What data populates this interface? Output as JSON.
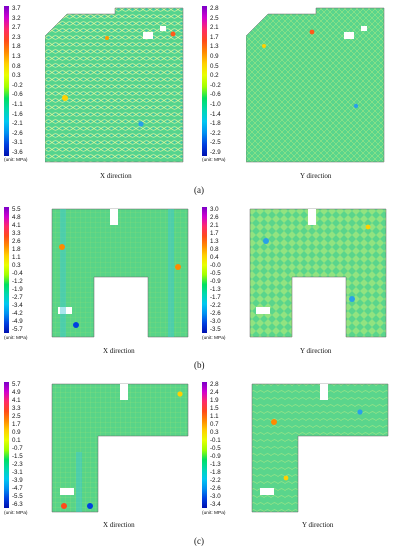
{
  "colors": {
    "scale": [
      "#7a00c8",
      "#d000d0",
      "#ff2a6a",
      "#ff4a1a",
      "#ff8a00",
      "#ffd000",
      "#e8ff00",
      "#a0ff00",
      "#00e060",
      "#00d8b0",
      "#00c8f0",
      "#0090f0",
      "#0040e0",
      "#0010b0"
    ],
    "field_base": "#4fd28a",
    "field_hot": "#ffd24a",
    "field_cold": "#2aa0e8"
  },
  "panels": [
    {
      "caption": "(a)",
      "plots": [
        {
          "direction_label": "X direction",
          "unit_label": "(unit: MPa)",
          "ticks": [
            "3.7",
            "3.2",
            "2.7",
            "2.3",
            "1.8",
            "1.3",
            "0.8",
            "0.3",
            "-0.2",
            "-0.6",
            "-1.1",
            "-1.6",
            "-2.1",
            "-2.6",
            "-3.1",
            "-3.6"
          ]
        },
        {
          "direction_label": "Y direction",
          "unit_label": "(unit: MPa)",
          "ticks": [
            "2.8",
            "2.5",
            "2.1",
            "1.7",
            "1.3",
            "0.9",
            "0.5",
            "0.2",
            "-0.2",
            "-0.6",
            "-1.0",
            "-1.4",
            "-1.8",
            "-2.2",
            "-2.5",
            "-2.9"
          ]
        }
      ]
    },
    {
      "caption": "(b)",
      "plots": [
        {
          "direction_label": "X direction",
          "unit_label": "(unit: MPa)",
          "ticks": [
            "5.5",
            "4.8",
            "4.1",
            "3.3",
            "2.6",
            "1.8",
            "1.1",
            "0.3",
            "-0.4",
            "-1.2",
            "-1.9",
            "-2.7",
            "-3.4",
            "-4.2",
            "-4.9",
            "-5.7"
          ]
        },
        {
          "direction_label": "Y direction",
          "unit_label": "(unit: MPa)",
          "ticks": [
            "3.0",
            "2.6",
            "2.1",
            "1.7",
            "1.3",
            "0.8",
            "0.4",
            "-0.0",
            "-0.5",
            "-0.9",
            "-1.3",
            "-1.7",
            "-2.2",
            "-2.6",
            "-3.0",
            "-3.5"
          ]
        }
      ]
    },
    {
      "caption": "(c)",
      "plots": [
        {
          "direction_label": "X direction",
          "unit_label": "(unit: MPa)",
          "ticks": [
            "5.7",
            "4.9",
            "4.1",
            "3.3",
            "2.5",
            "1.7",
            "0.9",
            "0.1",
            "-0.7",
            "-1.5",
            "-2.3",
            "-3.1",
            "-3.9",
            "-4.7",
            "-5.5",
            "-6.3"
          ]
        },
        {
          "direction_label": "Y direction",
          "unit_label": "(unit: MPa)",
          "ticks": [
            "2.8",
            "2.4",
            "1.9",
            "1.5",
            "1.1",
            "0.7",
            "0.3",
            "-0.1",
            "-0.5",
            "-0.9",
            "-1.3",
            "-1.8",
            "-2.2",
            "-2.6",
            "-3.0",
            "-3.4"
          ]
        }
      ]
    }
  ]
}
